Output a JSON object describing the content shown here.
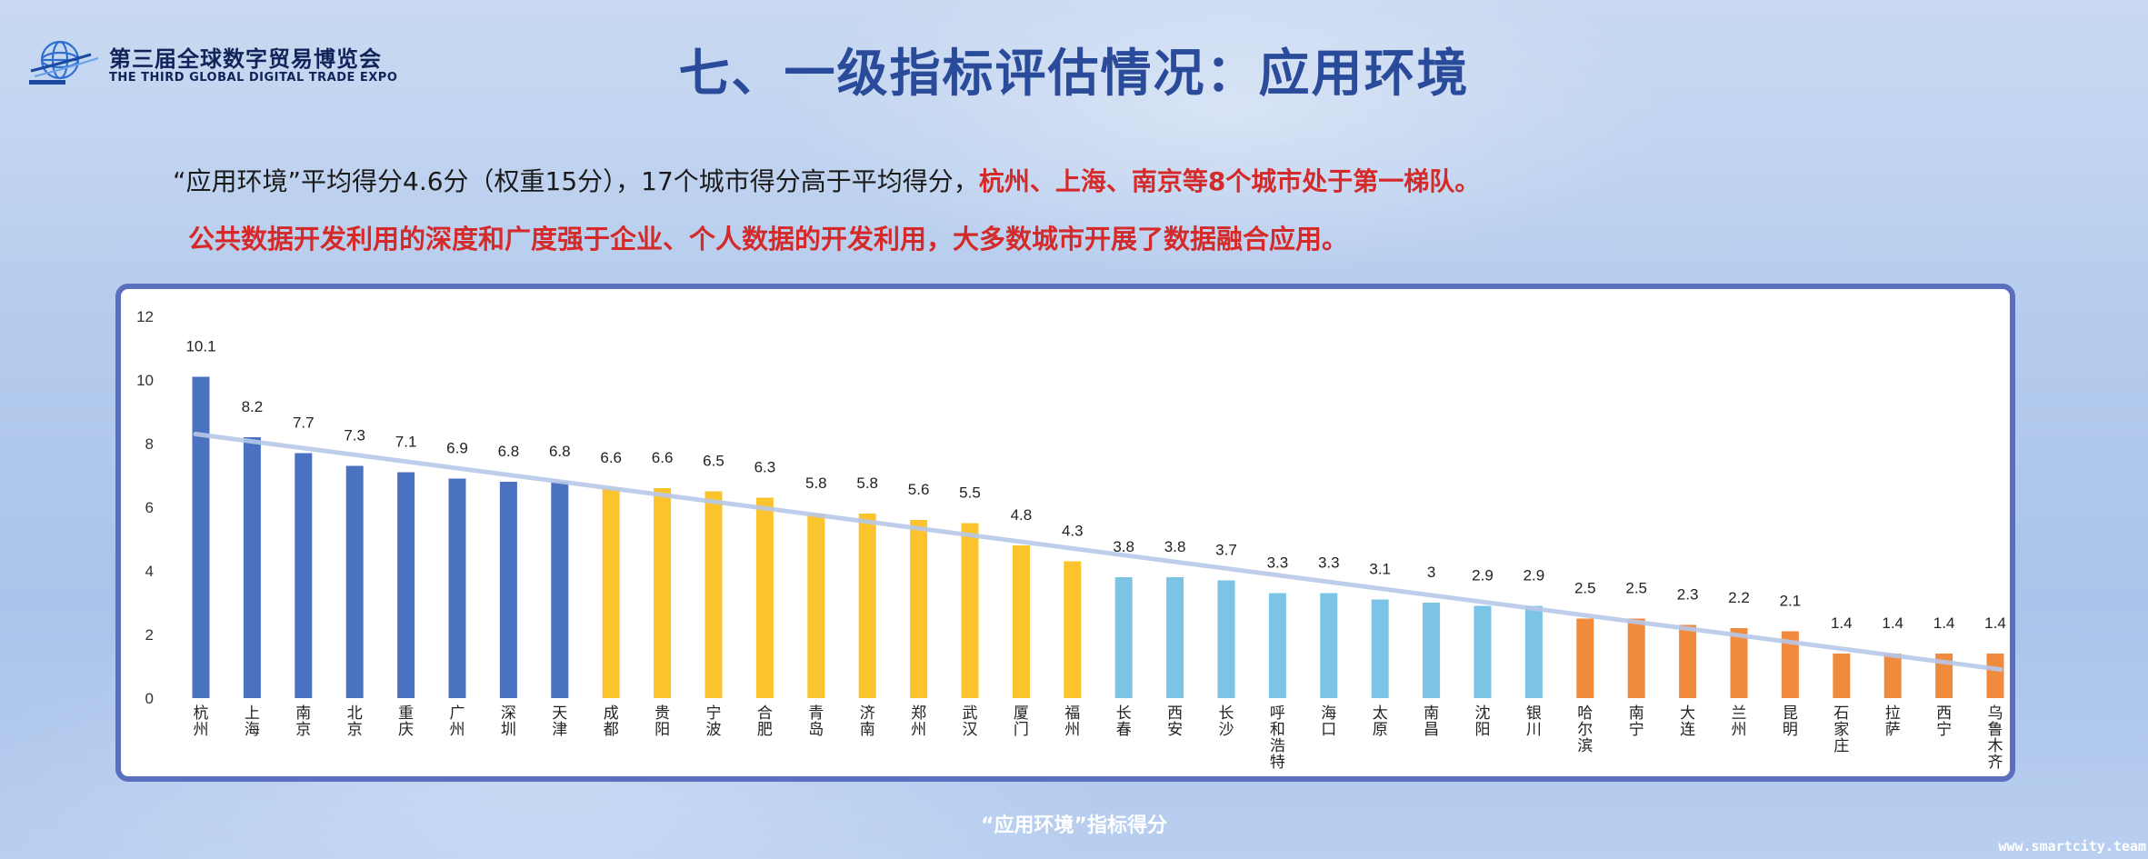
{
  "header": {
    "logo_cn": "第三届全球数字贸易博览会",
    "logo_en": "THE THIRD GLOBAL DIGITAL TRADE EXPO",
    "title": "七、一级指标评估情况：应用环境"
  },
  "summary": {
    "line1_prefix": "“应用环境”平均得分4.6分（权重15分），17个城市得分高于平均得分，",
    "line1_highlight": "杭州、上海、南京等8个城市处于第一梯队。",
    "line2": "公共数据开发利用的深度和广度强于企业、个人数据的开发利用，大多数城市开展了数据融合应用。"
  },
  "caption": "“应用环境”指标得分",
  "watermark": "www.smartcity.team",
  "colors": {
    "tier1": "#4a72c0",
    "tier2": "#fbc42d",
    "tier3": "#7bc4e6",
    "tier4": "#f08a3c",
    "trend": "#b8c8e8",
    "chart_border": "#5b6fbf"
  },
  "chart_data": {
    "type": "bar",
    "title": "",
    "xlabel": "",
    "ylabel": "",
    "ylim": [
      0,
      12
    ],
    "yticks": [
      0,
      2,
      4,
      6,
      8,
      10,
      12
    ],
    "grid": false,
    "categories": [
      "杭州",
      "上海",
      "南京",
      "北京",
      "重庆",
      "广州",
      "深圳",
      "天津",
      "成都",
      "贵阳",
      "宁波",
      "合肥",
      "青岛",
      "济南",
      "郑州",
      "武汉",
      "厦门",
      "福州",
      "长春",
      "西安",
      "长沙",
      "呼和浩特",
      "海口",
      "太原",
      "南昌",
      "沈阳",
      "银川",
      "哈尔滨",
      "南宁",
      "大连",
      "兰州",
      "昆明",
      "石家庄",
      "拉萨",
      "西宁",
      "乌鲁木齐"
    ],
    "values": [
      10.1,
      8.2,
      7.7,
      7.3,
      7.1,
      6.9,
      6.8,
      6.8,
      6.6,
      6.6,
      6.5,
      6.3,
      5.8,
      5.8,
      5.6,
      5.5,
      4.8,
      4.3,
      3.8,
      3.8,
      3.7,
      3.3,
      3.3,
      3.1,
      3,
      2.9,
      2.9,
      2.5,
      2.5,
      2.3,
      2.2,
      2.1,
      1.4,
      1.4,
      1.4,
      1.4
    ],
    "tiers": [
      1,
      1,
      1,
      1,
      1,
      1,
      1,
      1,
      2,
      2,
      2,
      2,
      2,
      2,
      2,
      2,
      2,
      2,
      3,
      3,
      3,
      3,
      3,
      3,
      3,
      3,
      3,
      4,
      4,
      4,
      4,
      4,
      4,
      4,
      4,
      4
    ],
    "trendline": {
      "type": "linear",
      "start": 8.3,
      "end": 0.9
    }
  }
}
